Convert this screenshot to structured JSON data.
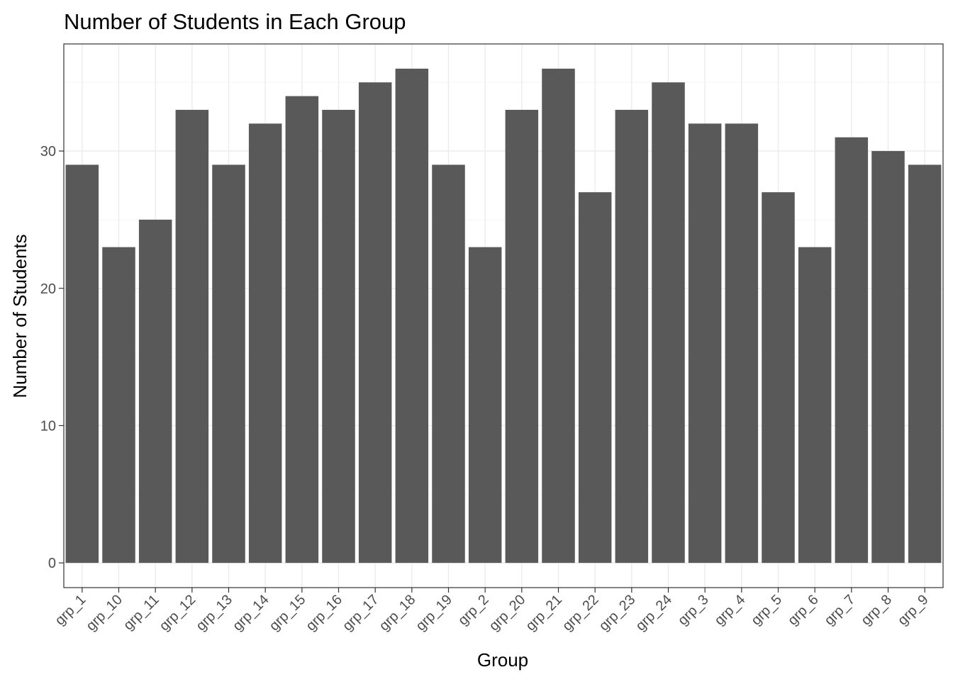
{
  "chart_data": {
    "type": "bar",
    "title": "Number of Students in Each Group",
    "xlabel": "Group",
    "ylabel": "Number of Students",
    "categories": [
      "grp_1",
      "grp_10",
      "grp_11",
      "grp_12",
      "grp_13",
      "grp_14",
      "grp_15",
      "grp_16",
      "grp_17",
      "grp_18",
      "grp_19",
      "grp_2",
      "grp_20",
      "grp_21",
      "grp_22",
      "grp_23",
      "grp_24",
      "grp_3",
      "grp_4",
      "grp_5",
      "grp_6",
      "grp_7",
      "grp_8",
      "grp_9"
    ],
    "values": [
      29,
      23,
      25,
      33,
      29,
      32,
      34,
      33,
      35,
      36,
      29,
      23,
      33,
      36,
      27,
      33,
      35,
      32,
      32,
      27,
      23,
      31,
      30,
      29
    ],
    "y_ticks": [
      0,
      10,
      20,
      30
    ],
    "ylim": [
      -1.8,
      37.8
    ],
    "grid": true,
    "bar_color": "#595959",
    "grid_major_color": "#ebebeb",
    "grid_minor_color": "#f5f5f5",
    "panel_border_color": "#333333",
    "tick_label_color": "#4d4d4d",
    "title_color": "#000000"
  }
}
